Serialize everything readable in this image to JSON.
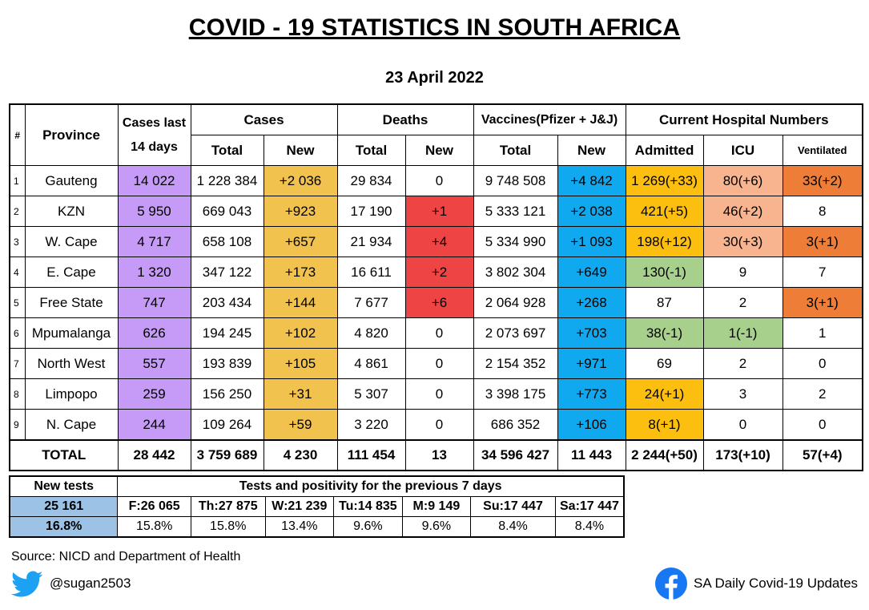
{
  "title": "COVID - 19 STATISTICS IN SOUTH AFRICA",
  "date": "23 April 2022",
  "headers": {
    "num": "#",
    "province": "Province",
    "cases14": "Cases last 14 days",
    "cases": "Cases",
    "deaths": "Deaths",
    "vaccines": "Vaccines(Pfizer + J&J)",
    "hospital": "Current Hospital Numbers",
    "total": "Total",
    "new": "New",
    "admitted": "Admitted",
    "icu": "ICU",
    "ventilated": "Ventilated"
  },
  "rows": [
    {
      "n": "1",
      "p": "Gauteng",
      "c14": "14 022",
      "ct": "1 228 384",
      "cn": "+2 036",
      "dt": "29 834",
      "dn": "0",
      "vt": "9 748 508",
      "vn": "+4 842",
      "adm": "1 269(+33)",
      "icu": "80(+6)",
      "vent": "33(+2)"
    },
    {
      "n": "2",
      "p": "KZN",
      "c14": "5 950",
      "ct": "669 043",
      "cn": "+923",
      "dt": "17 190",
      "dn": "+1",
      "vt": "5 333 121",
      "vn": "+2 038",
      "adm": "421(+5)",
      "icu": "46(+2)",
      "vent": "8"
    },
    {
      "n": "3",
      "p": "W. Cape",
      "c14": "4 717",
      "ct": "658 108",
      "cn": "+657",
      "dt": "21 934",
      "dn": "+4",
      "vt": "5 334 990",
      "vn": "+1 093",
      "adm": "198(+12)",
      "icu": "30(+3)",
      "vent": "3(+1)"
    },
    {
      "n": "4",
      "p": "E. Cape",
      "c14": "1 320",
      "ct": "347 122",
      "cn": "+173",
      "dt": "16 611",
      "dn": "+2",
      "vt": "3 802 304",
      "vn": "+649",
      "adm": "130(-1)",
      "icu": "9",
      "vent": "7"
    },
    {
      "n": "5",
      "p": "Free State",
      "c14": "747",
      "ct": "203 434",
      "cn": "+144",
      "dt": "7 677",
      "dn": "+6",
      "vt": "2 064 928",
      "vn": "+268",
      "adm": "87",
      "icu": "2",
      "vent": "3(+1)"
    },
    {
      "n": "6",
      "p": "Mpumalanga",
      "c14": "626",
      "ct": "194 245",
      "cn": "+102",
      "dt": "4 820",
      "dn": "0",
      "vt": "2 073 697",
      "vn": "+703",
      "adm": "38(-1)",
      "icu": "1(-1)",
      "vent": "1"
    },
    {
      "n": "7",
      "p": "North West",
      "c14": "557",
      "ct": "193 839",
      "cn": "+105",
      "dt": "4 861",
      "dn": "0",
      "vt": "2 154 352",
      "vn": "+971",
      "adm": "69",
      "icu": "2",
      "vent": "0"
    },
    {
      "n": "8",
      "p": "Limpopo",
      "c14": "259",
      "ct": "156 250",
      "cn": "+31",
      "dt": "5 307",
      "dn": "0",
      "vt": "3 398 175",
      "vn": "+773",
      "adm": "24(+1)",
      "icu": "3",
      "vent": "2"
    },
    {
      "n": "9",
      "p": "N. Cape",
      "c14": "244",
      "ct": "109 264",
      "cn": "+59",
      "dt": "3 220",
      "dn": "0",
      "vt": "686 352",
      "vn": "+106",
      "adm": "8(+1)",
      "icu": "0",
      "vent": "0"
    }
  ],
  "total": {
    "label": "TOTAL",
    "c14": "28 442",
    "ct": "3 759 689",
    "cn": "4 230",
    "dt": "111 454",
    "dn": "13",
    "vt": "34 596 427",
    "vn": "11 443",
    "adm": "2 244(+50)",
    "icu": "173(+10)",
    "vent": "57(+4)"
  },
  "tests": {
    "new_tests_label": "New tests",
    "header": "Tests and positivity for the previous 7 days",
    "new_tests_value": "25 161",
    "positivity_value": "16.8%",
    "days": [
      {
        "d": "F:26 065",
        "p": "15.8%"
      },
      {
        "d": "Th:27 875",
        "p": "15.8%"
      },
      {
        "d": "W:21 239",
        "p": "13.4%"
      },
      {
        "d": "Tu:14 835",
        "p": "9.6%"
      },
      {
        "d": "M:9 149",
        "p": "9.6%"
      },
      {
        "d": "Su:17 447",
        "p": "8.4%"
      },
      {
        "d": "Sa:17 447",
        "p": "8.4%"
      }
    ]
  },
  "source": "Source: NICD and Department of Health",
  "twitter_handle": "@sugan2503",
  "facebook_page": "SA Daily Covid-19 Updates",
  "icons": {
    "twitter": "twitter-bird-icon",
    "facebook": "facebook-icon"
  },
  "colors": {
    "cases14": "#c59bf7",
    "cases_new": "#f2c24e",
    "deaths_new": "#ee4444",
    "vaccines_new": "#10a9ef",
    "hospital_increase": "#fcbf0f",
    "icu_increase": "#f7b48e",
    "ventilated_increase": "#ee7d37",
    "decrease": "#a8d08d",
    "tests_highlight": "#9cc3e5"
  }
}
